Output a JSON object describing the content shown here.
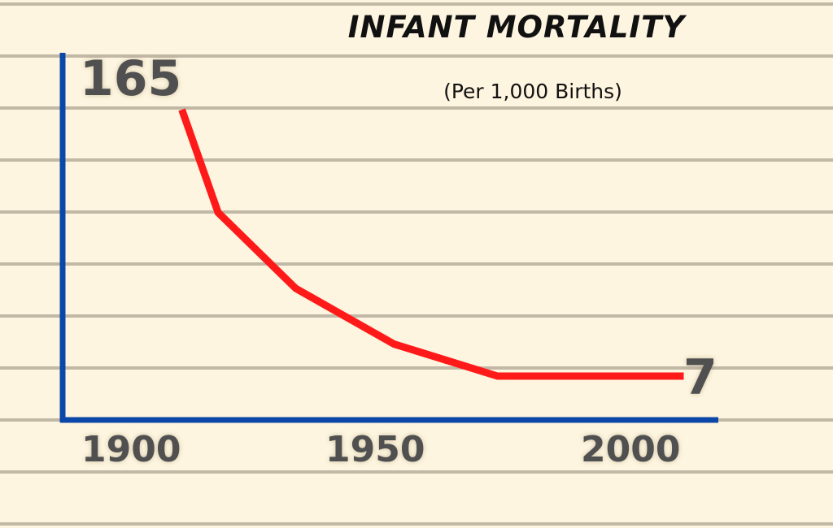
{
  "chart_data": {
    "type": "line",
    "title": "INFANT MORTALITY",
    "subtitle": "(Per 1,000 Births)",
    "x_tick_labels": [
      "1900",
      "1950",
      "2000"
    ],
    "start_label": "165",
    "end_label": "7",
    "series": [
      {
        "x": [
          1910,
          1917,
          1932,
          1951,
          1971,
          2007
        ],
        "y": [
          165,
          104,
          59,
          26,
          7,
          7
        ]
      }
    ],
    "xlim": [
      1887,
      2015
    ],
    "ylim": [
      -20,
      190
    ],
    "grid": true,
    "colors": {
      "line": "#ff1a1a",
      "axes": "#0a47a8",
      "grid": "#c2b8a6",
      "background": "#fdf5df",
      "labels": "#505050"
    }
  }
}
